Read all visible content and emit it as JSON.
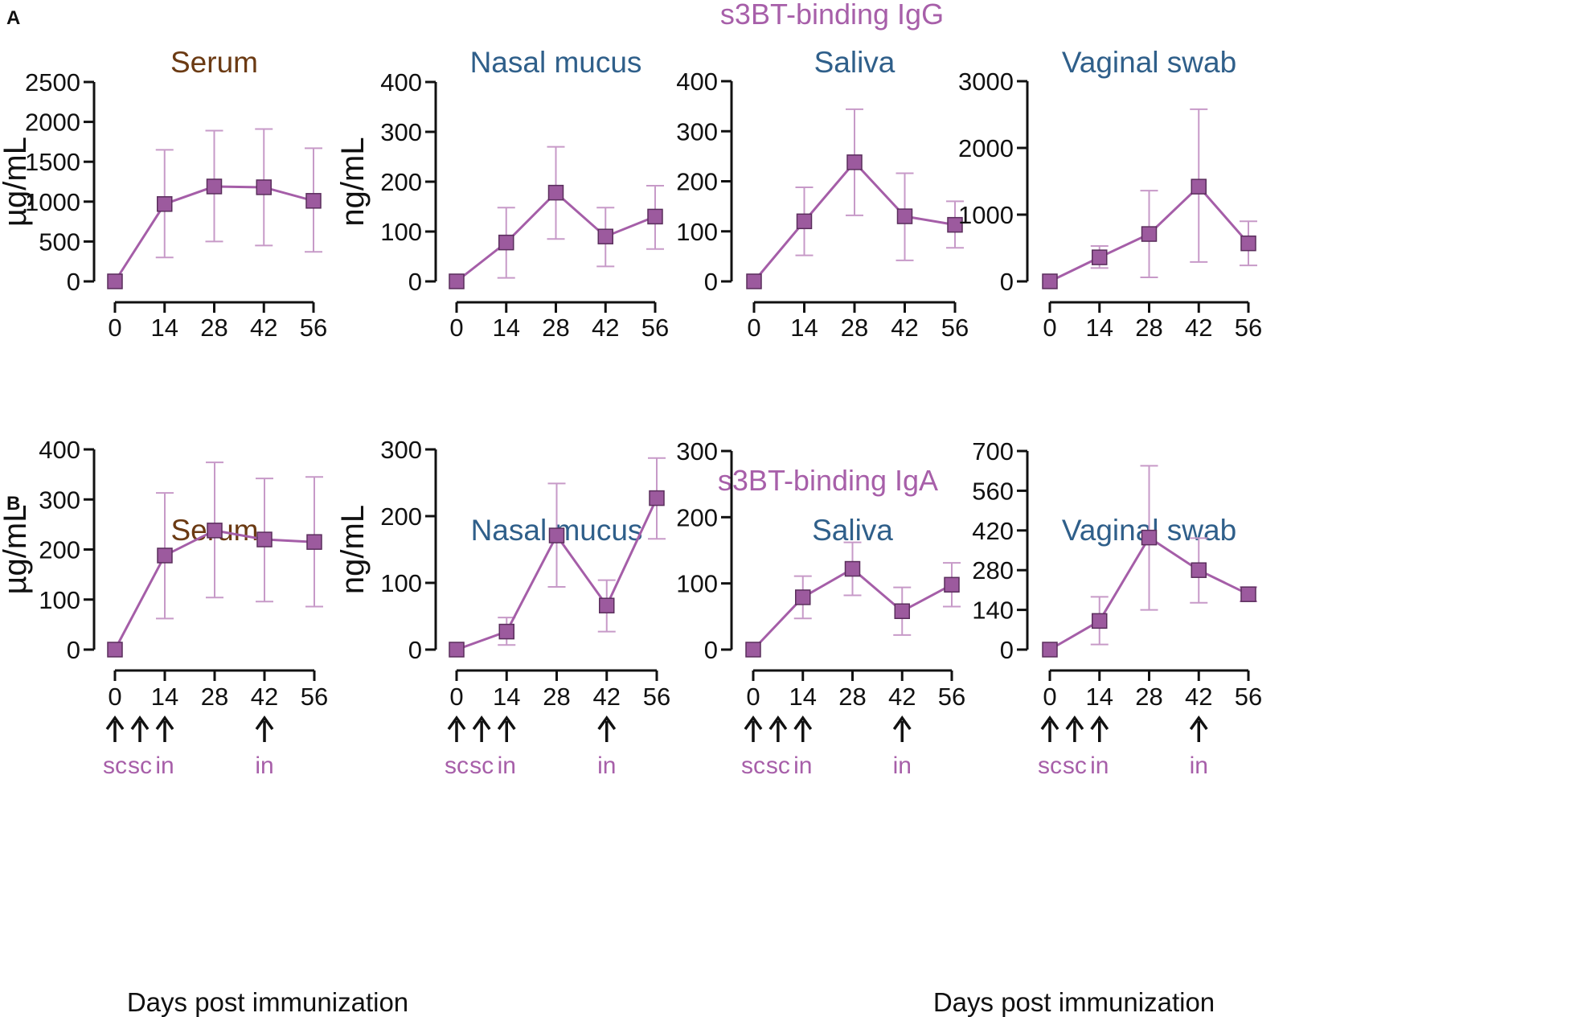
{
  "colors": {
    "marker_fill": "#9c5a9e",
    "marker_stroke": "#5a2e5c",
    "line": "#a55ea8",
    "error": "#c79ac8",
    "row_title": "#a75fa9",
    "serum_title": "#6b3a13",
    "mucosal_title": "#2f5f8a",
    "route": "#a75fa9",
    "axis": "#111111"
  },
  "panel_a": {
    "letter": "A",
    "title": "s3BT-binding IgG",
    "charts": [
      {
        "title": "Serum",
        "title_color": "serum",
        "chart_data": {
          "type": "line",
          "title": "Serum",
          "ylabel": "µg/mL",
          "xlabel": "",
          "x": [
            0,
            14,
            28,
            42,
            56
          ],
          "xticks": [
            "0",
            "14",
            "28",
            "42",
            "56"
          ],
          "y": [
            0,
            970,
            1190,
            1180,
            1010
          ],
          "err_low": [
            0,
            300,
            500,
            450,
            370
          ],
          "err_high": [
            0,
            1650,
            1890,
            1910,
            1670
          ],
          "ylim": [
            0,
            2500
          ],
          "yticks": [
            0,
            500,
            1000,
            1500,
            2000,
            2500
          ]
        }
      },
      {
        "title": "Nasal mucus",
        "title_color": "mucosal",
        "chart_data": {
          "type": "line",
          "title": "Nasal mucus",
          "ylabel": "ng/mL",
          "xlabel": "",
          "x": [
            0,
            14,
            28,
            42,
            56
          ],
          "xticks": [
            "0",
            "14",
            "28",
            "42",
            "56"
          ],
          "y": [
            0,
            78,
            178,
            90,
            130
          ],
          "err_low": [
            0,
            7,
            85,
            30,
            65
          ],
          "err_high": [
            0,
            148,
            270,
            148,
            192
          ],
          "ylim": [
            0,
            400
          ],
          "yticks": [
            0,
            100,
            200,
            300,
            400
          ]
        }
      },
      {
        "title": "Saliva",
        "title_color": "mucosal",
        "chart_data": {
          "type": "line",
          "title": "Saliva",
          "ylabel": "",
          "xlabel": "",
          "x": [
            0,
            14,
            28,
            42,
            56
          ],
          "xticks": [
            "0",
            "14",
            "28",
            "42",
            "56"
          ],
          "y": [
            0,
            120,
            238,
            130,
            113
          ],
          "err_low": [
            0,
            52,
            132,
            42,
            67
          ],
          "err_high": [
            0,
            188,
            344,
            216,
            160
          ],
          "ylim": [
            0,
            400
          ],
          "yticks": [
            0,
            100,
            200,
            300,
            400
          ]
        }
      },
      {
        "title": "Vaginal swab",
        "title_color": "mucosal",
        "chart_data": {
          "type": "line",
          "title": "Vaginal swab",
          "ylabel": "",
          "xlabel": "",
          "x": [
            0,
            14,
            28,
            42,
            56
          ],
          "xticks": [
            "0",
            "14",
            "28",
            "42",
            "56"
          ],
          "y": [
            0,
            360,
            710,
            1420,
            570
          ],
          "err_low": [
            0,
            200,
            60,
            290,
            240
          ],
          "err_high": [
            0,
            530,
            1360,
            2580,
            900
          ],
          "ylim": [
            0,
            3000
          ],
          "yticks": [
            0,
            1000,
            2000,
            3000
          ]
        }
      }
    ]
  },
  "panel_b": {
    "letter": "B",
    "title": "s3BT-binding IgA",
    "charts": [
      {
        "title": "Serum",
        "title_color": "serum",
        "chart_data": {
          "type": "line",
          "title": "Serum",
          "ylabel": "µg/mL",
          "xlabel": "",
          "x": [
            0,
            14,
            28,
            42,
            56
          ],
          "xticks": [
            "0",
            "14",
            "28",
            "42",
            "56"
          ],
          "y": [
            0,
            188,
            238,
            220,
            215
          ],
          "err_low": [
            0,
            62,
            104,
            96,
            86
          ],
          "err_high": [
            0,
            313,
            374,
            342,
            345
          ],
          "ylim": [
            0,
            400
          ],
          "yticks": [
            0,
            100,
            200,
            300,
            400
          ]
        }
      },
      {
        "title": "Nasal mucus",
        "title_color": "mucosal",
        "chart_data": {
          "type": "line",
          "title": "Nasal mucus",
          "ylabel": "ng/mL",
          "xlabel": "",
          "x": [
            0,
            14,
            28,
            42,
            56
          ],
          "xticks": [
            "0",
            "14",
            "28",
            "42",
            "56"
          ],
          "y": [
            0,
            27,
            171,
            66,
            227
          ],
          "err_low": [
            0,
            7,
            94,
            27,
            166
          ],
          "err_high": [
            0,
            48,
            249,
            104,
            287
          ],
          "ylim": [
            0,
            300
          ],
          "yticks": [
            0,
            100,
            200,
            300
          ]
        }
      },
      {
        "title": "Saliva",
        "title_color": "mucosal",
        "chart_data": {
          "type": "line",
          "title": "Saliva",
          "ylabel": "",
          "xlabel": "",
          "x": [
            0,
            14,
            28,
            42,
            56
          ],
          "xticks": [
            "0",
            "14",
            "28",
            "42",
            "56"
          ],
          "y": [
            0,
            79,
            122,
            58,
            98
          ],
          "err_low": [
            0,
            47,
            82,
            22,
            65
          ],
          "err_high": [
            0,
            111,
            162,
            94,
            131
          ],
          "ylim": [
            0,
            300
          ],
          "yticks": [
            0,
            100,
            200,
            300
          ]
        }
      },
      {
        "title": "Vaginal swab",
        "title_color": "mucosal",
        "chart_data": {
          "type": "line",
          "title": "Vaginal swab",
          "ylabel": "",
          "xlabel": "",
          "x": [
            0,
            14,
            28,
            42,
            56
          ],
          "xticks": [
            "0",
            "14",
            "28",
            "42",
            "56"
          ],
          "y": [
            0,
            101,
            395,
            280,
            195
          ],
          "err_low": [
            0,
            18,
            140,
            165,
            170
          ],
          "err_high": [
            0,
            186,
            648,
            393,
            220
          ],
          "ylim": [
            0,
            700
          ],
          "yticks": [
            0,
            140,
            280,
            420,
            560,
            700
          ]
        }
      }
    ]
  },
  "immunization": {
    "days": [
      0,
      7,
      14,
      42
    ],
    "routes": [
      "sc",
      "sc",
      "in",
      "in"
    ]
  },
  "xaxis_title": "Days post immunization"
}
